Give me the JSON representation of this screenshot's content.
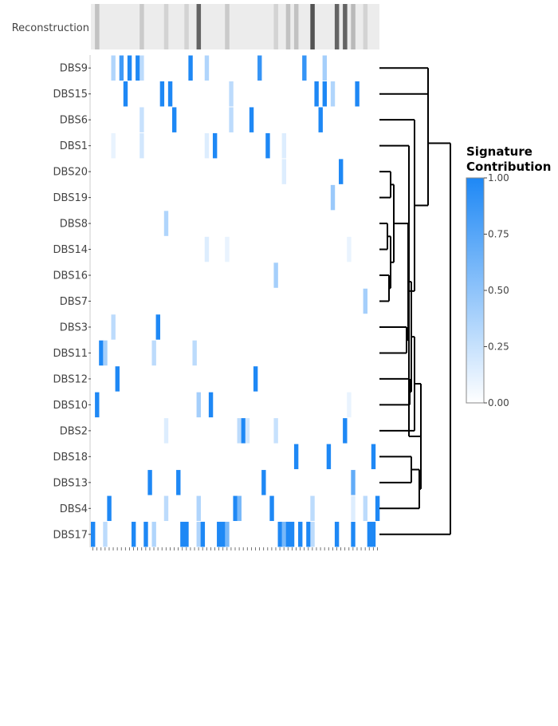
{
  "chart_data": {
    "type": "heatmap",
    "reconstruction_label": "Reconstruction",
    "rows": [
      "DBS9",
      "DBS15",
      "DBS6",
      "DBS1",
      "DBS20",
      "DBS19",
      "DBS8",
      "DBS14",
      "DBS16",
      "DBS7",
      "DBS3",
      "DBS11",
      "DBS12",
      "DBS10",
      "DBS2",
      "DBS18",
      "DBS13",
      "DBS4",
      "DBS17"
    ],
    "n_columns": 71,
    "cells": {
      "DBS9": [
        [
          5,
          0.35
        ],
        [
          7,
          0.85
        ],
        [
          9,
          1.0
        ],
        [
          11,
          1.0
        ],
        [
          12,
          0.3
        ],
        [
          24,
          1.0
        ],
        [
          28,
          0.35
        ],
        [
          41,
          0.9
        ],
        [
          52,
          0.9
        ],
        [
          57,
          0.4
        ]
      ],
      "DBS15": [
        [
          8,
          1.0
        ],
        [
          17,
          1.0
        ],
        [
          19,
          1.0
        ],
        [
          34,
          0.3
        ],
        [
          55,
          1.0
        ],
        [
          57,
          1.0
        ],
        [
          59,
          0.35
        ],
        [
          65,
          1.0
        ]
      ],
      "DBS6": [
        [
          12,
          0.25
        ],
        [
          20,
          1.0
        ],
        [
          34,
          0.3
        ],
        [
          39,
          1.0
        ],
        [
          56,
          1.0
        ]
      ],
      "DBS1": [
        [
          5,
          0.1
        ],
        [
          12,
          0.2
        ],
        [
          28,
          0.15
        ],
        [
          30,
          1.0
        ],
        [
          43,
          1.0
        ],
        [
          47,
          0.15
        ]
      ],
      "DBS20": [
        [
          47,
          0.15
        ],
        [
          61,
          1.0
        ]
      ],
      "DBS19": [
        [
          59,
          0.45
        ]
      ],
      "DBS8": [
        [
          18,
          0.35
        ]
      ],
      "DBS14": [
        [
          28,
          0.15
        ],
        [
          33,
          0.1
        ],
        [
          63,
          0.1
        ]
      ],
      "DBS16": [
        [
          45,
          0.4
        ]
      ],
      "DBS7": [
        [
          67,
          0.4
        ]
      ],
      "DBS3": [
        [
          5,
          0.3
        ],
        [
          16,
          1.0
        ]
      ],
      "DBS11": [
        [
          2,
          1.0
        ],
        [
          3,
          0.4
        ],
        [
          15,
          0.3
        ],
        [
          25,
          0.3
        ]
      ],
      "DBS12": [
        [
          6,
          1.0
        ],
        [
          40,
          1.0
        ]
      ],
      "DBS10": [
        [
          1,
          1.0
        ],
        [
          26,
          0.4
        ],
        [
          29,
          1.0
        ],
        [
          63,
          0.1
        ]
      ],
      "DBS2": [
        [
          18,
          0.15
        ],
        [
          36,
          0.3
        ],
        [
          37,
          1.0
        ],
        [
          38,
          0.2
        ],
        [
          45,
          0.25
        ],
        [
          62,
          1.0
        ]
      ],
      "DBS18": [
        [
          50,
          1.0
        ],
        [
          58,
          1.0
        ],
        [
          69,
          1.0
        ]
      ],
      "DBS13": [
        [
          14,
          1.0
        ],
        [
          21,
          1.0
        ],
        [
          42,
          1.0
        ],
        [
          64,
          0.7
        ]
      ],
      "DBS4": [
        [
          4,
          1.0
        ],
        [
          18,
          0.3
        ],
        [
          26,
          0.35
        ],
        [
          35,
          1.0
        ],
        [
          36,
          0.6
        ],
        [
          44,
          1.0
        ],
        [
          54,
          0.3
        ],
        [
          64,
          0.15
        ],
        [
          67,
          0.3
        ],
        [
          70,
          1.0
        ]
      ],
      "DBS17": [
        [
          0,
          1.0
        ],
        [
          3,
          0.3
        ],
        [
          10,
          1.0
        ],
        [
          13,
          1.0
        ],
        [
          15,
          0.35
        ],
        [
          22,
          1.0
        ],
        [
          23,
          1.0
        ],
        [
          26,
          0.35
        ],
        [
          27,
          1.0
        ],
        [
          31,
          1.0
        ],
        [
          32,
          1.0
        ],
        [
          33,
          0.6
        ],
        [
          46,
          1.0
        ],
        [
          47,
          0.6
        ],
        [
          48,
          1.0
        ],
        [
          49,
          1.0
        ],
        [
          51,
          1.0
        ],
        [
          53,
          1.0
        ],
        [
          54,
          0.3
        ],
        [
          60,
          1.0
        ],
        [
          64,
          1.0
        ],
        [
          68,
          1.0
        ],
        [
          69,
          1.0
        ]
      ]
    },
    "reconstruction_gray": [
      [
        1,
        0.25
      ],
      [
        12,
        0.2
      ],
      [
        18,
        0.15
      ],
      [
        23,
        0.15
      ],
      [
        26,
        0.8
      ],
      [
        33,
        0.2
      ],
      [
        45,
        0.15
      ],
      [
        48,
        0.25
      ],
      [
        50,
        0.25
      ],
      [
        54,
        0.9
      ],
      [
        60,
        0.8
      ],
      [
        62,
        0.8
      ],
      [
        64,
        0.3
      ],
      [
        67,
        0.15
      ]
    ],
    "colorbar": {
      "title_line1": "Signature",
      "title_line2": "Contribution",
      "ticks": [
        "1.00",
        "0.75",
        "0.50",
        "0.25",
        "0.00"
      ],
      "min_color": "#ffffff",
      "max_color": "#1e88f5"
    },
    "dendrogram_order": [
      "DBS9",
      "DBS15",
      "DBS6",
      "DBS1",
      "DBS20",
      "DBS19",
      "DBS8",
      "DBS14",
      "DBS16",
      "DBS7",
      "DBS3",
      "DBS11",
      "DBS12",
      "DBS10",
      "DBS2",
      "DBS18",
      "DBS13",
      "DBS4",
      "DBS17"
    ]
  }
}
